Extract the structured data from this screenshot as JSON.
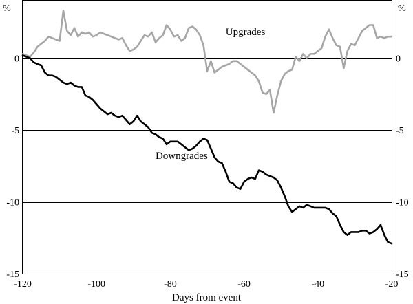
{
  "chart_data": {
    "type": "line",
    "title": "",
    "xlabel": "Days from event",
    "ylabel_left": "%",
    "ylabel_right": "%",
    "xlim": [
      -120,
      -20
    ],
    "ylim": [
      -15,
      4
    ],
    "x_ticks": [
      -120,
      -100,
      -80,
      -60,
      -40,
      -20
    ],
    "y_ticks": [
      0,
      -5,
      -10,
      -15
    ],
    "grid": "horizontal",
    "legend": "none",
    "series": [
      {
        "name": "Upgrades",
        "color": "#a6a6a6",
        "x": [
          -120,
          -119,
          -118,
          -117,
          -116,
          -115,
          -114,
          -113,
          -112,
          -111,
          -110,
          -109,
          -108,
          -107,
          -106,
          -105,
          -104,
          -103,
          -102,
          -101,
          -100,
          -99,
          -98,
          -97,
          -96,
          -95,
          -94,
          -93,
          -92,
          -91,
          -90,
          -89,
          -88,
          -87,
          -86,
          -85,
          -84,
          -83,
          -82,
          -81,
          -80,
          -79,
          -78,
          -77,
          -76,
          -75,
          -74,
          -73,
          -72,
          -71,
          -70,
          -69,
          -68,
          -67,
          -66,
          -65,
          -64,
          -63,
          -62,
          -61,
          -60,
          -59,
          -58,
          -57,
          -56,
          -55,
          -54,
          -53,
          -52,
          -51,
          -50,
          -49,
          -48,
          -47,
          -46,
          -45,
          -44,
          -43,
          -42,
          -41,
          -40,
          -39,
          -38,
          -37,
          -36,
          -35,
          -34,
          -33,
          -32,
          -31,
          -30,
          -29,
          -28,
          -27,
          -26,
          -25,
          -24,
          -23,
          -22,
          -21,
          -20
        ],
        "values": [
          0.3,
          0.2,
          0.1,
          0.4,
          0.8,
          1.0,
          1.2,
          1.5,
          1.4,
          1.3,
          1.2,
          3.3,
          1.9,
          1.6,
          2.1,
          1.5,
          1.8,
          1.7,
          1.8,
          1.5,
          1.6,
          1.8,
          1.7,
          1.6,
          1.5,
          1.4,
          1.3,
          1.4,
          0.9,
          0.5,
          0.6,
          0.8,
          1.2,
          1.6,
          1.5,
          1.8,
          1.1,
          1.4,
          1.6,
          2.3,
          2.0,
          1.5,
          1.6,
          1.2,
          1.4,
          2.1,
          2.2,
          2.0,
          1.6,
          0.9,
          -0.9,
          -0.2,
          -1.0,
          -0.8,
          -0.6,
          -0.5,
          -0.4,
          -0.2,
          -0.2,
          -0.4,
          -0.6,
          -0.8,
          -1.0,
          -1.2,
          -1.6,
          -2.4,
          -2.5,
          -2.2,
          -3.8,
          -2.6,
          -1.6,
          -1.1,
          -0.9,
          -0.8,
          0.1,
          -0.2,
          0.3,
          0.0,
          0.3,
          0.3,
          0.5,
          0.7,
          1.5,
          2.0,
          1.4,
          0.9,
          0.8,
          -0.7,
          0.5,
          1.0,
          0.9,
          1.4,
          1.9,
          2.1,
          2.3,
          2.3,
          1.4,
          1.5,
          1.4,
          1.5,
          1.5
        ]
      },
      {
        "name": "Downgrades",
        "color": "#000000",
        "x": [
          -120,
          -119,
          -118,
          -117,
          -116,
          -115,
          -114,
          -113,
          -112,
          -111,
          -110,
          -109,
          -108,
          -107,
          -106,
          -105,
          -104,
          -103,
          -102,
          -101,
          -100,
          -99,
          -98,
          -97,
          -96,
          -95,
          -94,
          -93,
          -92,
          -91,
          -90,
          -89,
          -88,
          -87,
          -86,
          -85,
          -84,
          -83,
          -82,
          -81,
          -80,
          -79,
          -78,
          -77,
          -76,
          -75,
          -74,
          -73,
          -72,
          -71,
          -70,
          -69,
          -68,
          -67,
          -66,
          -65,
          -64,
          -63,
          -62,
          -61,
          -60,
          -59,
          -58,
          -57,
          -56,
          -55,
          -54,
          -53,
          -52,
          -51,
          -50,
          -49,
          -48,
          -47,
          -46,
          -45,
          -44,
          -43,
          -42,
          -41,
          -40,
          -39,
          -38,
          -37,
          -36,
          -35,
          -34,
          -33,
          -32,
          -31,
          -30,
          -29,
          -28,
          -27,
          -26,
          -25,
          -24,
          -23,
          -22,
          -21,
          -20
        ],
        "values": [
          0.2,
          0.1,
          0.0,
          -0.3,
          -0.4,
          -0.5,
          -1.0,
          -1.2,
          -1.2,
          -1.3,
          -1.5,
          -1.7,
          -1.8,
          -1.7,
          -1.9,
          -2.0,
          -2.0,
          -2.6,
          -2.7,
          -2.9,
          -3.2,
          -3.5,
          -3.7,
          -3.9,
          -3.8,
          -4.0,
          -4.1,
          -4.0,
          -4.3,
          -4.6,
          -4.4,
          -4.0,
          -4.4,
          -4.6,
          -4.8,
          -5.2,
          -5.3,
          -5.5,
          -5.6,
          -6.0,
          -5.8,
          -5.8,
          -5.8,
          -6.0,
          -6.2,
          -6.4,
          -6.3,
          -6.1,
          -5.8,
          -5.6,
          -5.7,
          -6.3,
          -6.9,
          -7.2,
          -7.3,
          -7.9,
          -8.6,
          -8.7,
          -9.0,
          -9.1,
          -8.6,
          -8.4,
          -8.3,
          -8.4,
          -7.8,
          -7.9,
          -8.1,
          -8.2,
          -8.3,
          -8.5,
          -9.0,
          -9.6,
          -10.3,
          -10.7,
          -10.5,
          -10.3,
          -10.4,
          -10.2,
          -10.3,
          -10.4,
          -10.4,
          -10.4,
          -10.4,
          -10.5,
          -10.8,
          -11.0,
          -11.6,
          -12.1,
          -12.3,
          -12.1,
          -12.1,
          -12.1,
          -12.0,
          -12.0,
          -12.2,
          -12.1,
          -11.9,
          -11.6,
          -12.3,
          -12.8,
          -12.9
        ]
      }
    ],
    "annotations": [
      {
        "text": "Upgrades",
        "x": -65,
        "y": 1.6,
        "series": 0
      },
      {
        "text": "Downgrades",
        "x": -84,
        "y": -7.0,
        "series": 1
      }
    ]
  }
}
